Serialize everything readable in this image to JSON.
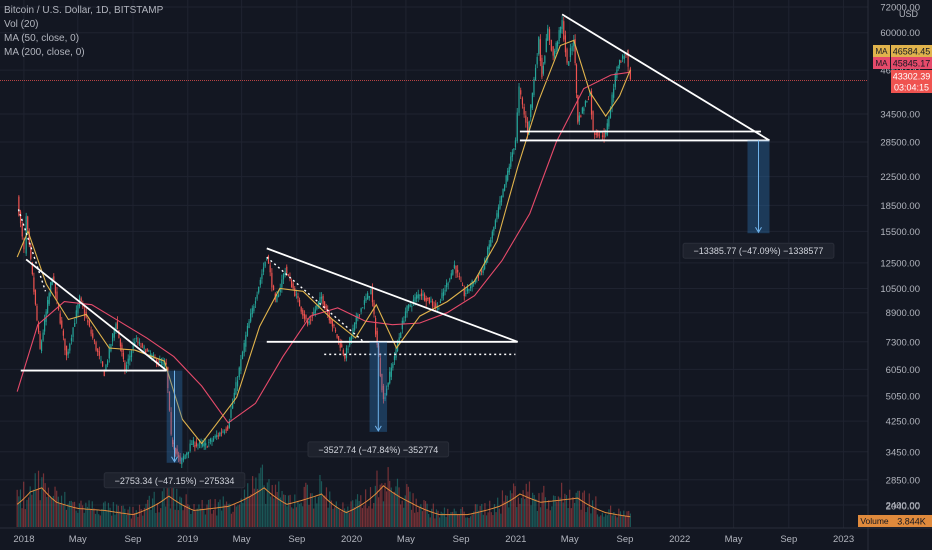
{
  "legend": {
    "symbol": "Bitcoin / U.S. Dollar, 1D, BITSTAMP",
    "vol": "Vol (20)",
    "ma50": "MA (50, close, 0)",
    "ma200": "MA (200, close, 0)"
  },
  "colors": {
    "background": "#131722",
    "grid": "#1f2330",
    "text": "#b2b5be",
    "up": "#26a69a",
    "down": "#ef5350",
    "ma50": "#e0b34c",
    "ma200": "#e64a6a",
    "trendline": "#ffffff",
    "measure": "#2f7bbf",
    "volume_ma": "#e08a3c",
    "price_line": "#ef5350"
  },
  "chart_data": {
    "type": "line",
    "title": "Bitcoin / U.S. Dollar, 1D, BITSTAMP",
    "scale": "log",
    "ylim": [
      2400,
      72000
    ],
    "y_ticks": [
      "72000.00",
      "60000.00",
      "46500.00",
      "34500.00",
      "28500.00",
      "22500.00",
      "18500.00",
      "15500.00",
      "12500.00",
      "10500.00",
      "8900.00",
      "7300.00",
      "6050.00",
      "5050.00",
      "4250.00",
      "3450.00",
      "2850.00",
      "2400.00",
      "2040.00"
    ],
    "currency": "USD",
    "x_ticks": [
      "2018",
      "May",
      "Sep",
      "2019",
      "May",
      "Sep",
      "2020",
      "May",
      "Sep",
      "2021",
      "May",
      "Sep",
      "2022",
      "May",
      "Sep",
      "2023"
    ],
    "price_markers": [
      {
        "label": "MA",
        "value": "46584.45",
        "color": "#e0b34c"
      },
      {
        "label": "MA",
        "value": "45845.17",
        "color": "#e64a6a"
      },
      {
        "label": "",
        "value": "43302.39",
        "color": "#ef5350"
      },
      {
        "label": "",
        "value": "03:04:15",
        "color": "#ef5350"
      }
    ],
    "price_path": [
      [
        "2017-12-17",
        19400
      ],
      [
        "2018-01-01",
        13500
      ],
      [
        "2018-01-06",
        17000
      ],
      [
        "2018-02-06",
        6900
      ],
      [
        "2018-03-05",
        11500
      ],
      [
        "2018-04-06",
        6600
      ],
      [
        "2018-05-05",
        9800
      ],
      [
        "2018-06-29",
        5900
      ],
      [
        "2018-07-25",
        8400
      ],
      [
        "2018-08-14",
        6000
      ],
      [
        "2018-09-05",
        7400
      ],
      [
        "2018-10-20",
        6450
      ],
      [
        "2018-11-14",
        6200
      ],
      [
        "2018-11-25",
        3800
      ],
      [
        "2018-12-15",
        3200
      ],
      [
        "2019-01-10",
        3650
      ],
      [
        "2019-02-10",
        3600
      ],
      [
        "2019-03-31",
        4100
      ],
      [
        "2019-05-14",
        8000
      ],
      [
        "2019-06-26",
        13200
      ],
      [
        "2019-07-15",
        9500
      ],
      [
        "2019-08-06",
        12000
      ],
      [
        "2019-09-25",
        8200
      ],
      [
        "2019-10-26",
        9900
      ],
      [
        "2019-12-17",
        6600
      ],
      [
        "2020-01-15",
        8800
      ],
      [
        "2020-02-13",
        10400
      ],
      [
        "2020-03-12",
        4900
      ],
      [
        "2020-04-30",
        9000
      ],
      [
        "2020-06-01",
        10200
      ],
      [
        "2020-07-10",
        9200
      ],
      [
        "2020-08-17",
        12300
      ],
      [
        "2020-09-08",
        10100
      ],
      [
        "2020-10-20",
        12000
      ],
      [
        "2020-11-30",
        19500
      ],
      [
        "2020-12-31",
        29000
      ],
      [
        "2021-01-08",
        41000
      ],
      [
        "2021-01-27",
        30500
      ],
      [
        "2021-02-21",
        57000
      ],
      [
        "2021-02-28",
        45000
      ],
      [
        "2021-03-13",
        61000
      ],
      [
        "2021-03-25",
        51000
      ],
      [
        "2021-04-14",
        64500
      ],
      [
        "2021-04-25",
        48000
      ],
      [
        "2021-05-10",
        58000
      ],
      [
        "2021-05-19",
        33000
      ],
      [
        "2021-06-15",
        40000
      ],
      [
        "2021-06-22",
        30500
      ],
      [
        "2021-07-20",
        29800
      ],
      [
        "2021-08-14",
        47500
      ],
      [
        "2021-08-23",
        50000
      ],
      [
        "2021-09-07",
        52700
      ],
      [
        "2021-09-08",
        46500
      ],
      [
        "2021-09-13",
        43302
      ]
    ],
    "ma50_path": [
      [
        "2017-12-17",
        13000
      ],
      [
        "2018-01-10",
        15500
      ],
      [
        "2018-02-20",
        10800
      ],
      [
        "2018-04-10",
        8500
      ],
      [
        "2018-05-20",
        8800
      ],
      [
        "2018-07-10",
        7000
      ],
      [
        "2018-09-05",
        6900
      ],
      [
        "2018-11-10",
        6400
      ],
      [
        "2018-12-20",
        4300
      ],
      [
        "2019-02-01",
        3650
      ],
      [
        "2019-04-20",
        5000
      ],
      [
        "2019-06-10",
        8100
      ],
      [
        "2019-07-25",
        10500
      ],
      [
        "2019-09-15",
        10300
      ],
      [
        "2019-11-15",
        8600
      ],
      [
        "2020-01-10",
        7500
      ],
      [
        "2020-02-25",
        9400
      ],
      [
        "2020-04-10",
        7000
      ],
      [
        "2020-06-01",
        8700
      ],
      [
        "2020-08-01",
        9600
      ],
      [
        "2020-09-30",
        11000
      ],
      [
        "2020-11-20",
        14500
      ],
      [
        "2021-01-05",
        24000
      ],
      [
        "2021-02-20",
        37500
      ],
      [
        "2021-04-10",
        55000
      ],
      [
        "2021-05-10",
        57000
      ],
      [
        "2021-06-15",
        40000
      ],
      [
        "2021-07-20",
        34000
      ],
      [
        "2021-08-20",
        39000
      ],
      [
        "2021-09-13",
        46584
      ]
    ],
    "ma200_path": [
      [
        "2017-12-17",
        5200
      ],
      [
        "2018-02-01",
        8200
      ],
      [
        "2018-04-01",
        9600
      ],
      [
        "2018-06-01",
        9400
      ],
      [
        "2018-08-01",
        8400
      ],
      [
        "2018-10-01",
        7500
      ],
      [
        "2018-12-01",
        6600
      ],
      [
        "2019-02-01",
        5400
      ],
      [
        "2019-04-01",
        4200
      ],
      [
        "2019-06-01",
        4800
      ],
      [
        "2019-08-01",
        6600
      ],
      [
        "2019-10-01",
        8700
      ],
      [
        "2019-12-01",
        9200
      ],
      [
        "2020-02-01",
        8400
      ],
      [
        "2020-04-01",
        8200
      ],
      [
        "2020-06-01",
        8300
      ],
      [
        "2020-08-01",
        8900
      ],
      [
        "2020-10-01",
        10000
      ],
      [
        "2020-12-01",
        12700
      ],
      [
        "2021-02-01",
        17500
      ],
      [
        "2021-04-01",
        28500
      ],
      [
        "2021-06-01",
        41000
      ],
      [
        "2021-08-01",
        45000
      ],
      [
        "2021-09-13",
        45845
      ]
    ],
    "volume": {
      "label": "Volume",
      "value": "3.844K",
      "points": [
        [
          "2017-12-17",
          0.55
        ],
        [
          "2018-01-15",
          0.85
        ],
        [
          "2018-02-10",
          0.95
        ],
        [
          "2018-03-15",
          0.6
        ],
        [
          "2018-05-01",
          0.45
        ],
        [
          "2018-07-01",
          0.4
        ],
        [
          "2018-09-01",
          0.3
        ],
        [
          "2018-11-20",
          0.75
        ],
        [
          "2019-01-15",
          0.4
        ],
        [
          "2019-04-01",
          0.5
        ],
        [
          "2019-06-20",
          0.95
        ],
        [
          "2019-08-10",
          0.55
        ],
        [
          "2019-10-26",
          0.8
        ],
        [
          "2019-12-20",
          0.35
        ],
        [
          "2020-03-12",
          1.0
        ],
        [
          "2020-05-10",
          0.6
        ],
        [
          "2020-07-15",
          0.3
        ],
        [
          "2020-09-15",
          0.3
        ],
        [
          "2020-11-25",
          0.5
        ],
        [
          "2021-01-10",
          0.8
        ],
        [
          "2021-02-25",
          0.6
        ],
        [
          "2021-05-19",
          0.7
        ],
        [
          "2021-07-20",
          0.35
        ],
        [
          "2021-09-13",
          0.25
        ]
      ]
    },
    "annotations": [
      {
        "id": "cycle-2018",
        "text": "−2753.34 (−47.15%) −275334"
      },
      {
        "id": "cycle-2020",
        "text": "−3527.74 (−47.84%) −352774"
      },
      {
        "id": "cycle-2021",
        "text": "−13385.77 (−47.09%) −1338577"
      }
    ],
    "trendlines": [
      {
        "from": [
          "2018-01-06",
          12800
        ],
        "to": [
          "2018-11-15",
          6000
        ]
      },
      {
        "from": [
          "2017-12-25",
          6000
        ],
        "to": [
          "2018-11-15",
          6000
        ]
      },
      {
        "from": [
          "2019-06-26",
          13800
        ],
        "to": [
          "2021-01-05",
          7300
        ]
      },
      {
        "from": [
          "2019-06-26",
          7300
        ],
        "to": [
          "2021-01-05",
          7300
        ]
      },
      {
        "from": [
          "2021-04-14",
          68000
        ],
        "to": [
          "2022-07-20",
          28800
        ]
      },
      {
        "from": [
          "2021-01-10",
          30600
        ],
        "to": [
          "2022-07-01",
          30600
        ]
      },
      {
        "from": [
          "2021-01-10",
          28800
        ],
        "to": [
          "2022-07-20",
          28800
        ]
      }
    ],
    "dotted_lines": [
      {
        "from": [
          "2017-12-20",
          18000
        ],
        "to": [
          "2018-02-18",
          10300
        ]
      },
      {
        "from": [
          "2019-06-26",
          13000
        ],
        "to": [
          "2020-01-28",
          7300
        ]
      },
      {
        "from": [
          "2019-11-01",
          6700
        ],
        "to": [
          "2020-12-31",
          6700
        ]
      }
    ],
    "measures": [
      {
        "x0": "2018-11-15",
        "x1": "2018-12-20",
        "from": 6000,
        "to": 3200,
        "label_index": 0
      },
      {
        "x0": "2020-02-10",
        "x1": "2020-03-20",
        "from": 7300,
        "to": 3950,
        "label_index": 1
      },
      {
        "x0": "2022-06-01",
        "x1": "2022-07-20",
        "from": 28800,
        "to": 15300,
        "label_index": 2
      }
    ]
  }
}
